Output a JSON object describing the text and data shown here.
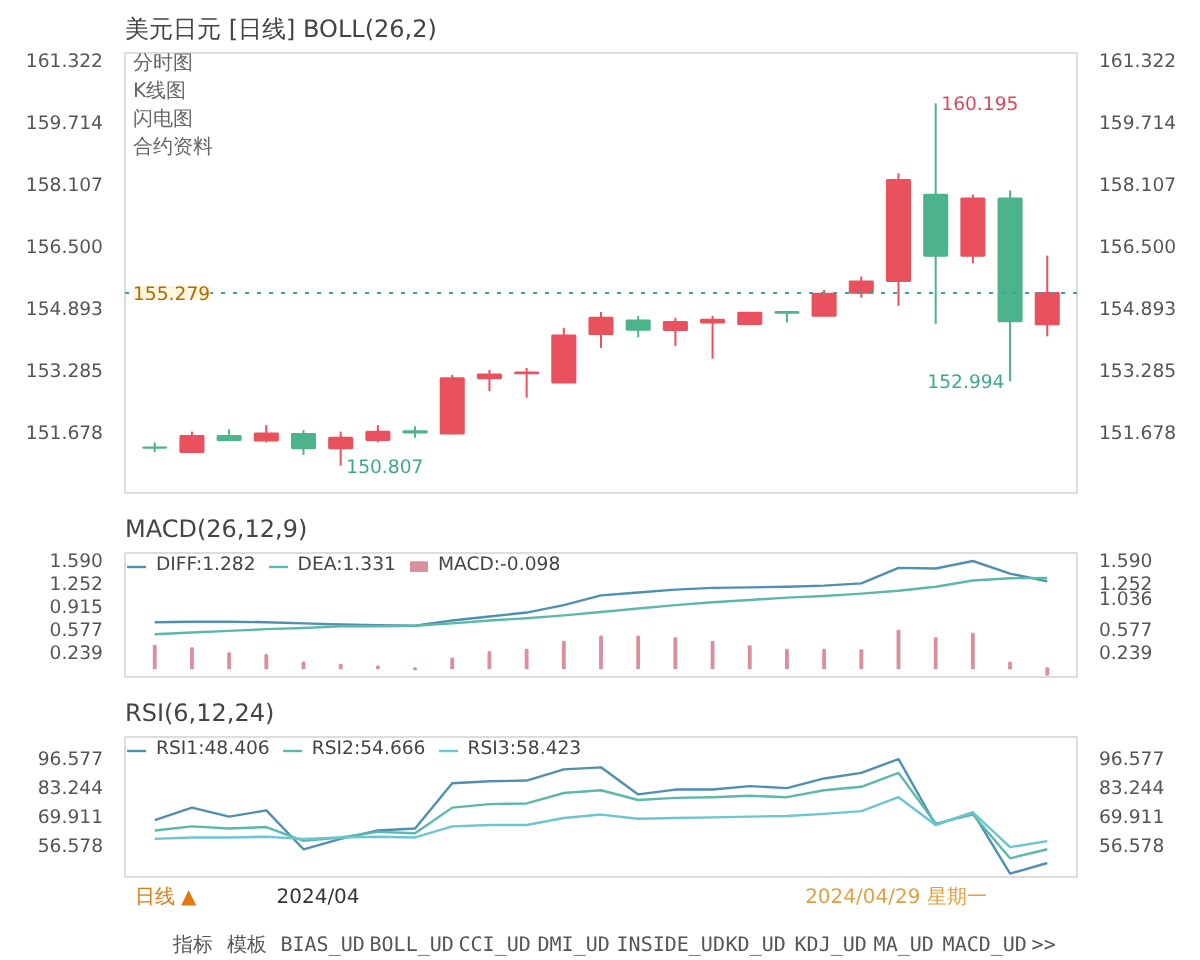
{
  "chart_data": [
    {
      "type": "candlestick",
      "title": "美元日元 [日线] BOLL(26,2)",
      "categories": [
        null,
        null,
        null,
        null,
        null,
        null,
        null,
        null,
        null,
        null,
        null,
        null,
        null,
        null,
        null,
        null,
        null,
        null,
        null,
        null,
        null,
        null,
        null,
        null,
        null
      ],
      "ohlc": [
        [
          151.28,
          151.41,
          151.16,
          151.27
        ],
        [
          151.16,
          151.69,
          151.16,
          151.58
        ],
        [
          151.58,
          151.75,
          151.44,
          151.47
        ],
        [
          151.46,
          151.86,
          151.41,
          151.64
        ],
        [
          151.63,
          151.73,
          151.09,
          151.26
        ],
        [
          151.26,
          151.69,
          150.807,
          151.53
        ],
        [
          151.47,
          151.86,
          151.41,
          151.69
        ],
        [
          151.7,
          151.83,
          151.53,
          151.67
        ],
        [
          151.64,
          153.16,
          151.62,
          153.07
        ],
        [
          153.07,
          153.29,
          152.74,
          153.17
        ],
        [
          153.2,
          153.34,
          152.57,
          153.22
        ],
        [
          152.96,
          154.38,
          152.96,
          154.18
        ],
        [
          154.22,
          154.79,
          153.86,
          154.64
        ],
        [
          154.57,
          154.69,
          154.13,
          154.33
        ],
        [
          154.32,
          154.64,
          153.91,
          154.53
        ],
        [
          154.52,
          154.69,
          153.58,
          154.59
        ],
        [
          154.48,
          154.78,
          154.45,
          154.77
        ],
        [
          154.79,
          154.82,
          154.52,
          154.77
        ],
        [
          154.69,
          155.36,
          154.69,
          155.26
        ],
        [
          155.29,
          155.71,
          155.16,
          155.58
        ],
        [
          155.59,
          158.38,
          154.95,
          158.21
        ],
        [
          157.83,
          160.195,
          154.48,
          156.25
        ],
        [
          156.25,
          157.83,
          156.05,
          157.73
        ],
        [
          157.73,
          157.94,
          152.994,
          154.55
        ],
        [
          154.47,
          156.25,
          154.16,
          155.279
        ]
      ],
      "colors": [
        "#4cb38a",
        "#e8515d",
        "#4cb38a",
        "#e8515d",
        "#4cb38a",
        "#e8515d",
        "#e8515d",
        "#4cb38a",
        "#e8515d",
        "#e8515d",
        "#e8515d",
        "#e8515d",
        "#e8515d",
        "#4cb38a",
        "#e8515d",
        "#e8515d",
        "#e8515d",
        "#4cb38a",
        "#e8515d",
        "#e8515d",
        "#e8515d",
        "#4cb38a",
        "#e8515d",
        "#4cb38a",
        "#e8515d"
      ],
      "ylim": [
        150.1,
        161.5
      ],
      "yticks": [
        151.678,
        153.285,
        154.893,
        {
          "value": 156.5,
          "label": "156.500"
        },
        158.107,
        159.714,
        161.322
      ],
      "y2lim": [
        150.1,
        161.5
      ],
      "y2ticks": [
        151.678,
        153.285,
        154.893,
        {
          "value": 156.5,
          "label": "156.500"
        },
        158.107,
        159.714,
        161.322
      ],
      "ref_lines": [
        {
          "axis": "y",
          "value": 155.279,
          "label": "155.279",
          "color": "#3f9fa8",
          "line_style": "dotted"
        }
      ],
      "annotations": [
        "分时图",
        "K线图",
        "闪电图",
        "合约资料",
        "160.195",
        "150.807",
        "152.994"
      ]
    },
    {
      "type": "line",
      "title": "MACD(26,12,9)",
      "legend": "top left",
      "categories": [
        null,
        null,
        null,
        null,
        null,
        null,
        null,
        null,
        null,
        null,
        null,
        null,
        null,
        null,
        null,
        null,
        null,
        null,
        null,
        null,
        null,
        null,
        null,
        null,
        null
      ],
      "series": [
        {
          "name": "DIFF:1.282",
          "color": "#4f8fb0",
          "values": [
            0.678,
            0.686,
            0.686,
            0.678,
            0.661,
            0.644,
            0.636,
            0.627,
            0.703,
            0.762,
            0.821,
            0.931,
            1.074,
            1.117,
            1.159,
            1.185,
            1.193,
            1.202,
            1.218,
            1.252,
            1.48,
            1.472,
            1.582,
            1.396,
            1.282
          ]
        },
        {
          "name": "DEA:1.331",
          "color": "#5cb8a8",
          "values": [
            0.5,
            0.526,
            0.551,
            0.577,
            0.593,
            0.619,
            0.619,
            0.627,
            0.661,
            0.703,
            0.737,
            0.779,
            0.83,
            0.881,
            0.931,
            0.973,
            1.007,
            1.041,
            1.066,
            1.1,
            1.142,
            1.202,
            1.295,
            1.328,
            1.331
          ]
        },
        {
          "name": "MACD:-0.098",
          "type": "bar",
          "color": "#d98f9c",
          "values": [
            0.33,
            0.296,
            0.22,
            0.195,
            0.085,
            0.051,
            0.026,
            -0.016,
            0.144,
            0.239,
            0.273,
            0.391,
            0.466,
            0.466,
            0.441,
            0.391,
            0.323,
            0.273,
            0.273,
            0.264,
            0.551,
            0.441,
            0.509,
            0.085,
            -0.098
          ]
        }
      ],
      "ylim": [
        -0.13,
        1.7
      ],
      "yticks": [
        0.239,
        0.577,
        0.915,
        1.252,
        {
          "value": 1.59,
          "label": "1.590"
        }
      ],
      "y2lim": [
        -0.13,
        1.7
      ],
      "y2ticks": [
        0.239,
        0.577,
        1.036,
        1.252,
        {
          "value": 1.59,
          "label": "1.590"
        }
      ]
    },
    {
      "type": "line",
      "title": "RSI(6,12,24)",
      "legend": "top left",
      "categories": [
        null,
        null,
        null,
        null,
        null,
        null,
        null,
        null,
        null,
        null,
        null,
        null,
        null,
        null,
        null,
        null,
        null,
        null,
        null,
        null,
        null,
        null,
        null,
        null,
        null
      ],
      "series": [
        {
          "name": "RSI1:48.406",
          "color": "#4f8fb0",
          "values": [
            68.01,
            73.72,
            69.59,
            72.45,
            54.67,
            59.43,
            63.24,
            64.2,
            84.83,
            85.78,
            86.1,
            91.18,
            92.13,
            79.75,
            81.97,
            81.97,
            83.56,
            82.61,
            87.05,
            89.59,
            95.94,
            65.78,
            71.5,
            43.56,
            48.41
          ]
        },
        {
          "name": "RSI2:54.666",
          "color": "#5cb8a8",
          "values": [
            63.24,
            65.15,
            64.2,
            64.83,
            58.49,
            60.07,
            62.61,
            61.97,
            73.72,
            75.31,
            75.63,
            80.39,
            81.66,
            77.21,
            78.16,
            78.49,
            79.12,
            78.49,
            81.66,
            83.24,
            89.59,
            66.42,
            70.54,
            50.55,
            54.67
          ]
        },
        {
          "name": "RSI3:58.423",
          "color": "#6cc5d0",
          "values": [
            59.43,
            60.07,
            60.07,
            60.39,
            59.43,
            60.07,
            60.39,
            60.07,
            65.15,
            65.78,
            65.78,
            68.96,
            70.54,
            68.64,
            68.96,
            69.28,
            69.59,
            69.91,
            70.86,
            72.13,
            78.49,
            65.78,
            71.5,
            55.63,
            58.42
          ]
        }
      ],
      "ylim": [
        42,
        106
      ],
      "yticks": [
        56.578,
        69.911,
        83.244,
        96.577
      ],
      "y2lim": [
        42,
        106
      ],
      "y2ticks": [
        56.578,
        69.911,
        83.244,
        96.577
      ],
      "annotations": [
        "日线 ▲",
        "2024/04",
        "2024/04/29 星期一"
      ]
    },
    {
      "type": "other",
      "annotations": [
        "指标",
        "模板",
        "BIAS_UD",
        "BOLL_UD",
        "CCI_UD",
        "DMI_UD",
        "INSIDE_UD",
        "KD_UD",
        "KDJ_UD",
        "MA_UD",
        "MACD_UD",
        ">>"
      ]
    }
  ]
}
